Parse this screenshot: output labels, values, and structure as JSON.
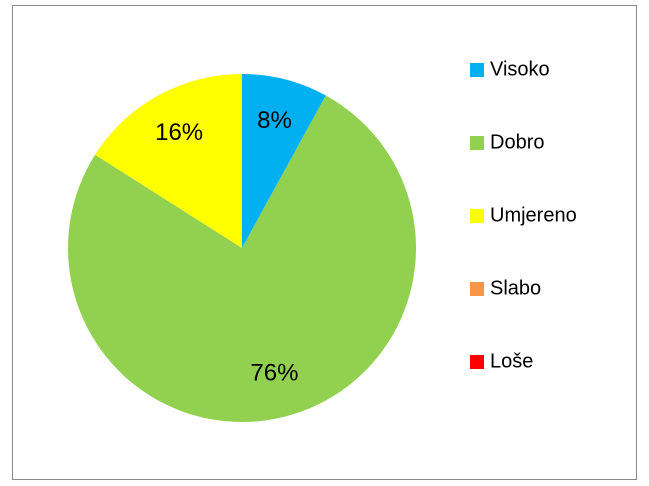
{
  "chart_data": {
    "type": "pie",
    "categories": [
      "Visoko",
      "Dobro",
      "Umjereno",
      "Slabo",
      "Loše"
    ],
    "values": [
      8,
      76,
      16,
      0,
      0
    ],
    "value_labels": [
      "8%",
      "76%",
      "16%",
      null,
      null
    ],
    "colors": [
      "#00b0f0",
      "#92d050",
      "#ffff00",
      "#f79646",
      "#ff0000"
    ],
    "legend": "right"
  }
}
